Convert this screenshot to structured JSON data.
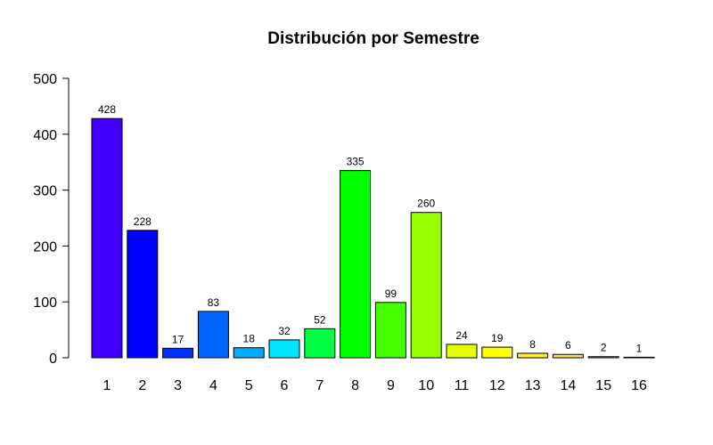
{
  "chart_data": {
    "type": "bar",
    "title": "Distribución por Semestre",
    "xlabel": "",
    "ylabel": "",
    "categories": [
      "1",
      "2",
      "3",
      "4",
      "5",
      "6",
      "7",
      "8",
      "9",
      "10",
      "11",
      "12",
      "13",
      "14",
      "15",
      "16"
    ],
    "values": [
      428,
      228,
      17,
      83,
      18,
      32,
      52,
      335,
      99,
      260,
      24,
      19,
      8,
      6,
      2,
      1
    ],
    "data_labels": [
      "428",
      "228",
      "17",
      "83",
      "18",
      "32",
      "52",
      "335",
      "99",
      "260",
      "24",
      "19",
      "8",
      "6",
      "2",
      "1"
    ],
    "colors": [
      "#4400FF",
      "#0000FF",
      "#0033FF",
      "#0066FF",
      "#00AAFF",
      "#00E5FF",
      "#00FF44",
      "#00FF00",
      "#44FF00",
      "#99FF00",
      "#E5FF00",
      "#FFFF00",
      "#FFEE33",
      "#FFDD66",
      "#FFE6A0",
      "#FFF2D0"
    ],
    "ylim": [
      0,
      500
    ],
    "yticks": [
      0,
      100,
      200,
      300,
      400,
      500
    ],
    "ytick_labels": [
      "0",
      "100",
      "200",
      "300",
      "400",
      "500"
    ],
    "grid": false,
    "legend": "none"
  }
}
